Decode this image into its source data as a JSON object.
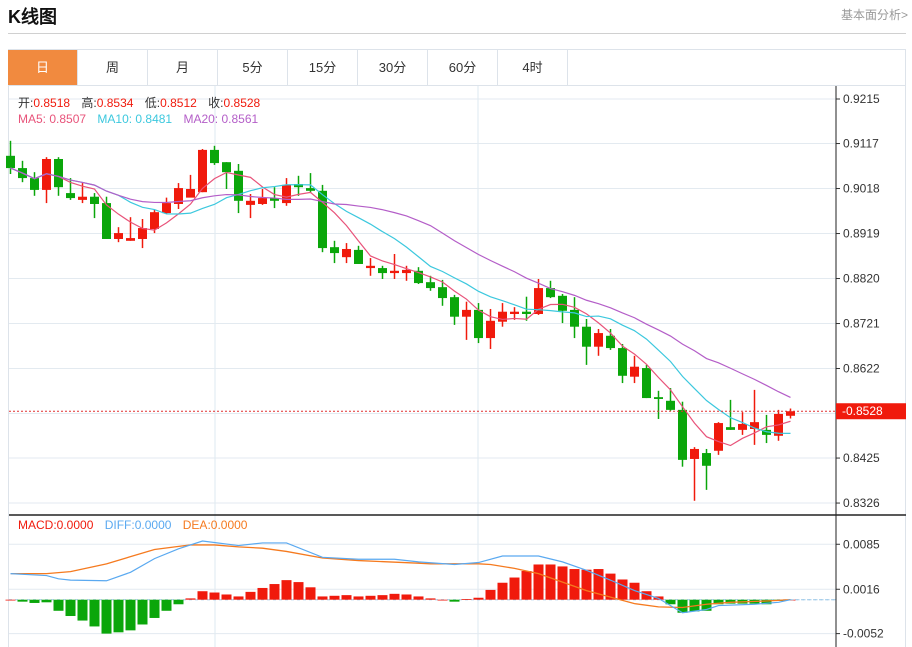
{
  "header": {
    "title": "K线图",
    "link": "基本面分析>"
  },
  "tabs": [
    {
      "label": "日",
      "active": true
    },
    {
      "label": "周"
    },
    {
      "label": "月"
    },
    {
      "label": "5分"
    },
    {
      "label": "15分"
    },
    {
      "label": "30分"
    },
    {
      "label": "60分"
    },
    {
      "label": "4时"
    }
  ],
  "ohlc_legend": {
    "open_label": "开:",
    "open": "0.8518",
    "high_label": "高:",
    "high": "0.8534",
    "low_label": "低:",
    "low": "0.8512",
    "close_label": "收:",
    "close": "0.8528"
  },
  "ma_legend": {
    "ma5": "MA5: 0.8507",
    "ma10": "MA10: 0.8481",
    "ma20": "MA20: 0.8561"
  },
  "macd_legend": {
    "macd": "MACD:0.0000",
    "diff": "DIFF:0.0000",
    "dea": "DEA:0.0000"
  },
  "colors": {
    "up": "#f01a0c",
    "down": "#0aa60a",
    "ma5": "#e8537a",
    "ma10": "#3cc8de",
    "ma20": "#b45ec8",
    "diff": "#5aa9f0",
    "dea": "#f57a1f",
    "accent": "#f18a3f"
  },
  "chart_data": {
    "type": "candlestick",
    "price_ticks": [
      "0.9215",
      "0.9117",
      "0.9018",
      "0.8919",
      "0.8820",
      "0.8721",
      "0.8622",
      "0.8425",
      "0.8326"
    ],
    "price_range": [
      0.8326,
      0.9215
    ],
    "current_price": "0.8528",
    "candles_ohlc": [
      [
        0.909,
        0.9123,
        0.905,
        0.9063
      ],
      [
        0.9063,
        0.9079,
        0.9032,
        0.9041
      ],
      [
        0.9041,
        0.9054,
        0.9002,
        0.9015
      ],
      [
        0.9015,
        0.9087,
        0.8986,
        0.9083
      ],
      [
        0.9083,
        0.9087,
        0.9002,
        0.9021
      ],
      [
        0.9008,
        0.9041,
        0.8993,
        0.8997
      ],
      [
        0.8993,
        0.903,
        0.8986,
        0.9
      ],
      [
        0.9,
        0.9008,
        0.8953,
        0.8984
      ],
      [
        0.8986,
        0.9,
        0.8907,
        0.8907
      ],
      [
        0.8907,
        0.8933,
        0.89,
        0.892
      ],
      [
        0.8903,
        0.8955,
        0.8903,
        0.8909
      ],
      [
        0.8907,
        0.8951,
        0.8887,
        0.8931
      ],
      [
        0.8929,
        0.8971,
        0.892,
        0.8966
      ],
      [
        0.8964,
        0.8998,
        0.8962,
        0.8986
      ],
      [
        0.8984,
        0.903,
        0.8973,
        0.9019
      ],
      [
        0.8998,
        0.9048,
        0.9002,
        0.9017
      ],
      [
        0.901,
        0.9105,
        0.901,
        0.9103
      ],
      [
        0.9103,
        0.9112,
        0.907,
        0.9074
      ],
      [
        0.9076,
        0.9076,
        0.9017,
        0.9054
      ],
      [
        0.9057,
        0.9072,
        0.8964,
        0.8991
      ],
      [
        0.8982,
        0.9006,
        0.8953,
        0.8991
      ],
      [
        0.8984,
        0.9017,
        0.8982,
        0.8997
      ],
      [
        0.8997,
        0.9021,
        0.8975,
        0.8991
      ],
      [
        0.8986,
        0.9041,
        0.898,
        0.9026
      ],
      [
        0.9028,
        0.9046,
        0.9002,
        0.9021
      ],
      [
        0.9019,
        0.9052,
        0.9008,
        0.9013
      ],
      [
        0.9013,
        0.9026,
        0.8878,
        0.8887
      ],
      [
        0.8889,
        0.8903,
        0.8854,
        0.8876
      ],
      [
        0.8867,
        0.8898,
        0.8854,
        0.8885
      ],
      [
        0.8883,
        0.8892,
        0.8852,
        0.8852
      ],
      [
        0.8843,
        0.8865,
        0.8826,
        0.8848
      ],
      [
        0.8843,
        0.8848,
        0.8819,
        0.8832
      ],
      [
        0.8832,
        0.8874,
        0.8819,
        0.8837
      ],
      [
        0.8832,
        0.8848,
        0.8815,
        0.8839
      ],
      [
        0.8837,
        0.8845,
        0.8808,
        0.881
      ],
      [
        0.8812,
        0.8826,
        0.8793,
        0.8799
      ],
      [
        0.8801,
        0.8817,
        0.876,
        0.8777
      ],
      [
        0.8779,
        0.8784,
        0.8718,
        0.8736
      ],
      [
        0.8736,
        0.8769,
        0.8685,
        0.8751
      ],
      [
        0.8751,
        0.8766,
        0.8678,
        0.8689
      ],
      [
        0.8689,
        0.8753,
        0.8665,
        0.8727
      ],
      [
        0.8725,
        0.8766,
        0.8714,
        0.8747
      ],
      [
        0.8742,
        0.8757,
        0.8729,
        0.8747
      ],
      [
        0.8747,
        0.878,
        0.8727,
        0.8742
      ],
      [
        0.8742,
        0.8819,
        0.874,
        0.8799
      ],
      [
        0.8799,
        0.8815,
        0.8777,
        0.8779
      ],
      [
        0.8782,
        0.8786,
        0.8722,
        0.8749
      ],
      [
        0.8751,
        0.8779,
        0.8689,
        0.8714
      ],
      [
        0.8714,
        0.8731,
        0.863,
        0.867
      ],
      [
        0.867,
        0.8709,
        0.865,
        0.87
      ],
      [
        0.8694,
        0.8709,
        0.8663,
        0.8667
      ],
      [
        0.8667,
        0.8676,
        0.859,
        0.8606
      ],
      [
        0.8604,
        0.865,
        0.859,
        0.8626
      ],
      [
        0.8623,
        0.863,
        0.8557,
        0.8557
      ],
      [
        0.8559,
        0.8573,
        0.8511,
        0.8555
      ],
      [
        0.8551,
        0.8579,
        0.8529,
        0.8531
      ],
      [
        0.8531,
        0.8549,
        0.8406,
        0.8421
      ],
      [
        0.8423,
        0.8449,
        0.8331,
        0.8445
      ],
      [
        0.8436,
        0.8445,
        0.8355,
        0.8408
      ],
      [
        0.8441,
        0.8504,
        0.8432,
        0.8502
      ],
      [
        0.8493,
        0.8553,
        0.8487,
        0.8487
      ],
      [
        0.8487,
        0.8526,
        0.8476,
        0.85
      ],
      [
        0.8489,
        0.8575,
        0.8454,
        0.8504
      ],
      [
        0.8487,
        0.852,
        0.8458,
        0.8476
      ],
      [
        0.8474,
        0.8531,
        0.8463,
        0.8522
      ],
      [
        0.8518,
        0.8534,
        0.8512,
        0.8528
      ]
    ],
    "macd_ticks": [
      "0.0085",
      "0.0016",
      "-0.0052"
    ],
    "macd_hist": [
      0.0,
      -0.0003,
      -0.0005,
      -0.0004,
      -0.0017,
      -0.0025,
      -0.0032,
      -0.0041,
      -0.0052,
      -0.005,
      -0.0047,
      -0.0038,
      -0.0028,
      -0.0017,
      -0.0007,
      0.0002,
      0.0013,
      0.0011,
      0.0008,
      0.0005,
      0.0012,
      0.0018,
      0.0024,
      0.003,
      0.0027,
      0.0019,
      0.0005,
      0.0006,
      0.0007,
      0.0005,
      0.0006,
      0.0007,
      0.0009,
      0.0008,
      0.0005,
      0.0002,
      0.0,
      -0.0003,
      0.0001,
      0.0003,
      0.0015,
      0.0026,
      0.0034,
      0.0044,
      0.0054,
      0.0054,
      0.0051,
      0.0047,
      0.0046,
      0.0047,
      0.004,
      0.0031,
      0.0026,
      0.0013,
      0.0005,
      -0.0007,
      -0.002,
      -0.0018,
      -0.0017,
      -0.0007,
      -0.0006,
      -0.0006,
      -0.0006,
      -0.0007,
      -0.0002,
      0.0
    ],
    "diff_points": [
      [
        0,
        0.004
      ],
      [
        3,
        0.0037
      ],
      [
        4,
        0.0032
      ],
      [
        5,
        0.003
      ],
      [
        8,
        0.0029
      ],
      [
        10,
        0.0042
      ],
      [
        12,
        0.0063
      ],
      [
        14,
        0.0078
      ],
      [
        16,
        0.009
      ],
      [
        19,
        0.0083
      ],
      [
        21,
        0.0087
      ],
      [
        23,
        0.0087
      ],
      [
        26,
        0.0065
      ],
      [
        29,
        0.0062
      ],
      [
        32,
        0.0062
      ],
      [
        34,
        0.0058
      ],
      [
        37,
        0.0054
      ],
      [
        39,
        0.0057
      ],
      [
        41,
        0.0067
      ],
      [
        44,
        0.0067
      ],
      [
        46,
        0.0058
      ],
      [
        48,
        0.0045
      ],
      [
        50,
        0.003
      ],
      [
        52,
        0.0014
      ],
      [
        54,
        0.0002
      ],
      [
        56,
        -0.002
      ],
      [
        58,
        -0.0015
      ],
      [
        59,
        -0.0009
      ],
      [
        62,
        -0.0007
      ],
      [
        64,
        -0.0004
      ],
      [
        65,
        0.0
      ]
    ],
    "dea_points": [
      [
        0,
        0.004
      ],
      [
        3,
        0.004
      ],
      [
        5,
        0.0043
      ],
      [
        8,
        0.0055
      ],
      [
        10,
        0.0066
      ],
      [
        12,
        0.0077
      ],
      [
        15,
        0.0084
      ],
      [
        17,
        0.0084
      ],
      [
        19,
        0.0081
      ],
      [
        21,
        0.0079
      ],
      [
        23,
        0.0074
      ],
      [
        26,
        0.0064
      ],
      [
        29,
        0.006
      ],
      [
        34,
        0.0056
      ],
      [
        35,
        0.0055
      ],
      [
        39,
        0.0055
      ],
      [
        40,
        0.0054
      ],
      [
        42,
        0.0048
      ],
      [
        44,
        0.004
      ],
      [
        46,
        0.0027
      ],
      [
        48,
        0.0014
      ],
      [
        50,
        0.0004
      ],
      [
        52,
        -0.0006
      ],
      [
        54,
        -0.0011
      ],
      [
        56,
        -0.0012
      ],
      [
        58,
        -0.0007
      ],
      [
        60,
        -0.0004
      ],
      [
        63,
        -0.0002
      ],
      [
        65,
        0.0
      ]
    ]
  }
}
